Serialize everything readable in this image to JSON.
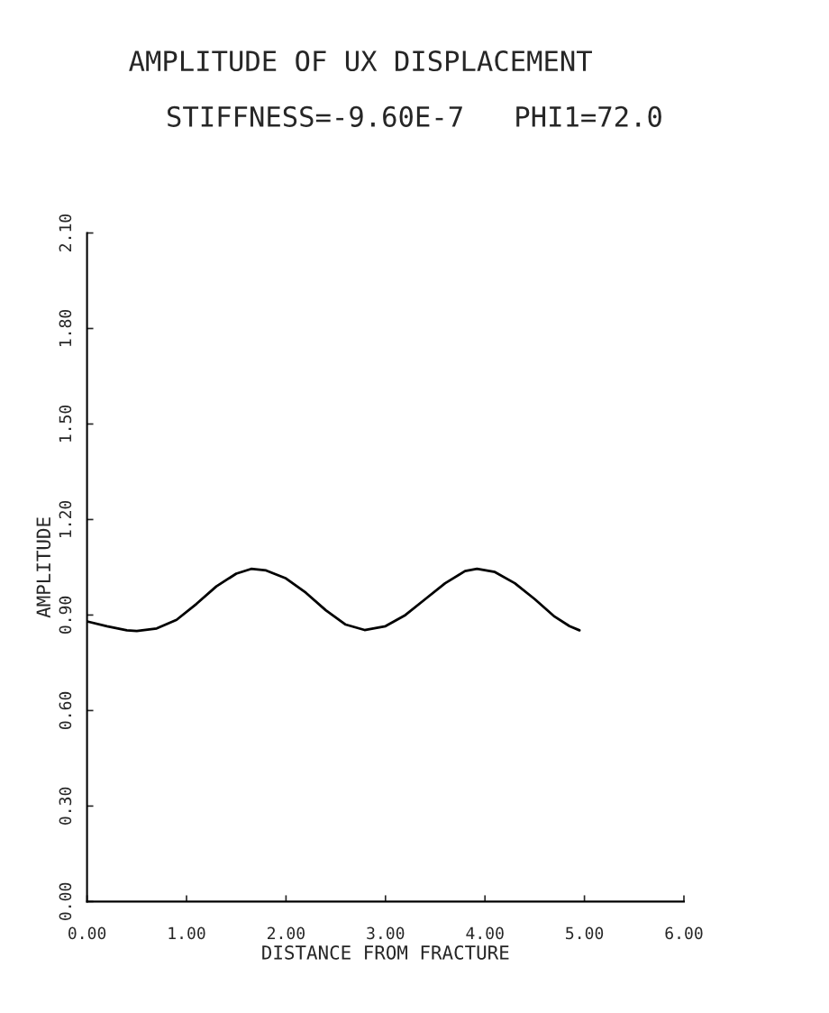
{
  "chart_data": {
    "type": "line",
    "title": "AMPLITUDE OF UX DISPLACEMENT",
    "subtitle": "STIFFNESS=-9.60E-7   PHI1=72.0",
    "xlabel": "DISTANCE FROM FRACTURE",
    "ylabel": "AMPLITUDE",
    "x": [
      0.0,
      0.2,
      0.4,
      0.5,
      0.7,
      0.9,
      1.1,
      1.3,
      1.5,
      1.65,
      1.8,
      2.0,
      2.2,
      2.4,
      2.6,
      2.79,
      3.0,
      3.2,
      3.4,
      3.6,
      3.8,
      3.92,
      4.1,
      4.3,
      4.5,
      4.7,
      4.85,
      4.95
    ],
    "series": [
      {
        "color": "#000000",
        "values": [
          0.88,
          0.865,
          0.852,
          0.85,
          0.858,
          0.885,
          0.935,
          0.99,
          1.03,
          1.045,
          1.04,
          1.015,
          0.97,
          0.915,
          0.87,
          0.853,
          0.865,
          0.9,
          0.95,
          1.0,
          1.038,
          1.045,
          1.035,
          1.0,
          0.95,
          0.895,
          0.865,
          0.852
        ]
      }
    ],
    "xlim": [
      0,
      6
    ],
    "xticks": [
      {
        "value": 0,
        "label": "0.00"
      },
      {
        "value": 1,
        "label": "1.00"
      },
      {
        "value": 2,
        "label": "2.00"
      },
      {
        "value": 3,
        "label": "3.00"
      },
      {
        "value": 4,
        "label": "4.00"
      },
      {
        "value": 5,
        "label": "5.00"
      },
      {
        "value": 6,
        "label": "6.00"
      }
    ],
    "ylim": [
      0,
      2.1
    ],
    "yticks": [
      {
        "value": 0,
        "label": "0.00"
      },
      {
        "value": 0.3,
        "label": "0.30"
      },
      {
        "value": 0.6,
        "label": "0.60"
      },
      {
        "value": 0.9,
        "label": "0.90"
      },
      {
        "value": 1.2,
        "label": "1.20"
      },
      {
        "value": 1.5,
        "label": "1.50"
      },
      {
        "value": 1.8,
        "label": "1.80"
      },
      {
        "value": 2.1,
        "label": "2.10"
      }
    ],
    "grid": false,
    "marker": "none",
    "line_style": "solid"
  }
}
